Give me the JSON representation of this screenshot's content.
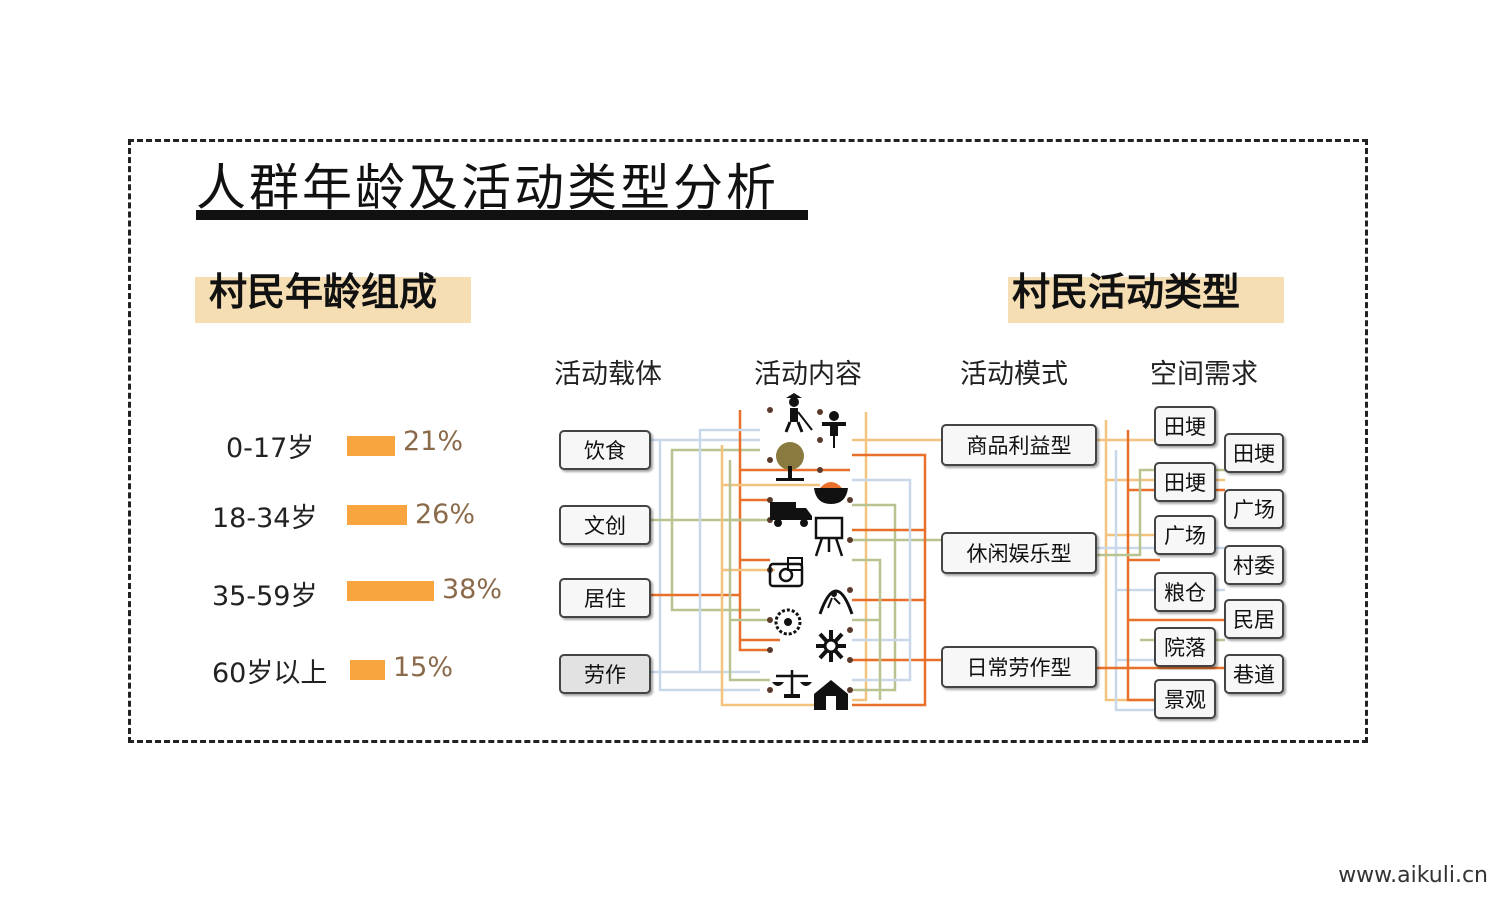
{
  "title": "人群年龄及活动类型分析",
  "age_section": {
    "heading": "村民年龄组成",
    "rows": [
      {
        "label": "0-17岁",
        "percent": 21,
        "percent_label": "21%"
      },
      {
        "label": "18-34岁",
        "percent": 26,
        "percent_label": "26%"
      },
      {
        "label": "35-59岁",
        "percent": 38,
        "percent_label": "38%"
      },
      {
        "label": "60岁以上",
        "percent": 15,
        "percent_label": "15%"
      }
    ],
    "bar_color": "#f8a43f"
  },
  "activity_section": {
    "heading": "村民活动类型",
    "columns": [
      "活动载体",
      "活动内容",
      "活动模式",
      "空间需求"
    ],
    "carriers": [
      "饮食",
      "文创",
      "居住",
      "劳作"
    ],
    "content_icons": [
      "farmer-icon",
      "scarecrow-icon",
      "tree-icon",
      "food-bowl-icon",
      "truck-icon",
      "painting-easel-icon",
      "camera-icon",
      "climbing-icon",
      "flowers-icon",
      "tools-icon",
      "scale-icon",
      "house-icon"
    ],
    "modes": [
      "商品利益型",
      "休闲娱乐型",
      "日常劳作型"
    ],
    "spaces_left": [
      "田埂",
      "田埂",
      "广场",
      "粮仓",
      "院落",
      "景观"
    ],
    "spaces_right": [
      "田埂",
      "广场",
      "村委",
      "民居",
      "巷道"
    ],
    "line_colors": {
      "orange": "#e8702a",
      "tan": "#f2c27f",
      "sage": "#b8c48f",
      "blue": "#c9d8e8"
    }
  },
  "footer": "www.aikuli.cn"
}
